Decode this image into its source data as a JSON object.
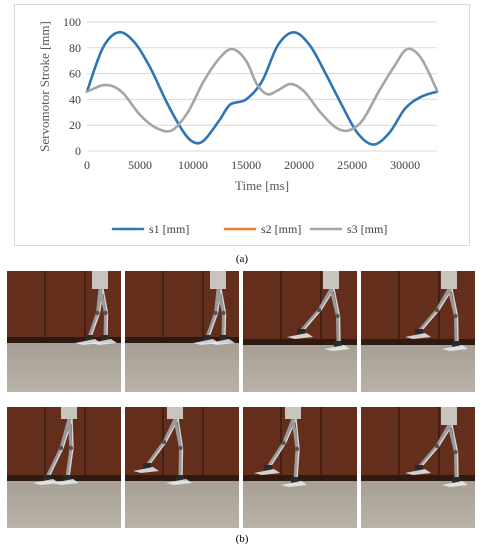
{
  "figure": {
    "caption_a": "(a)",
    "caption_b": "(b)"
  },
  "chart_data": {
    "type": "line",
    "xlabel": "Time [ms]",
    "ylabel": "Servomotor Stroke [mm]",
    "xlim": [
      0,
      33000
    ],
    "ylim": [
      0,
      100
    ],
    "x_ticks": [
      0,
      5000,
      10000,
      15000,
      20000,
      25000,
      30000
    ],
    "y_ticks": [
      0,
      20,
      40,
      60,
      80,
      100
    ],
    "x_tick_labels": [
      "0",
      "5000",
      "10000",
      "15000",
      "20000",
      "25000",
      "30000"
    ],
    "y_tick_labels": [
      "0",
      "20",
      "40",
      "60",
      "80",
      "100"
    ],
    "grid": "horizontal",
    "legend_position": "bottom",
    "series": [
      {
        "name": "s1 [mm]",
        "color": "#2e75b6",
        "points": [
          [
            0,
            46
          ],
          [
            1500,
            80
          ],
          [
            3000,
            92
          ],
          [
            4500,
            84
          ],
          [
            6000,
            64
          ],
          [
            7500,
            38
          ],
          [
            9000,
            16
          ],
          [
            10000,
            7
          ],
          [
            11000,
            8
          ],
          [
            12500,
            24
          ],
          [
            13500,
            36
          ],
          [
            15000,
            40
          ],
          [
            16500,
            54
          ],
          [
            18000,
            82
          ],
          [
            19500,
            92
          ],
          [
            21000,
            82
          ],
          [
            22500,
            60
          ],
          [
            24000,
            36
          ],
          [
            25500,
            14
          ],
          [
            27000,
            5
          ],
          [
            28500,
            14
          ],
          [
            30000,
            33
          ],
          [
            31500,
            42
          ],
          [
            33000,
            46
          ]
        ]
      },
      {
        "name": "s2 [mm]",
        "color": "#ed7d31",
        "points": []
      },
      {
        "name": "s3 [mm]",
        "color": "#a5a5a5",
        "points": [
          [
            0,
            46
          ],
          [
            1500,
            51
          ],
          [
            2500,
            50
          ],
          [
            3500,
            44
          ],
          [
            5000,
            28
          ],
          [
            6500,
            18
          ],
          [
            8000,
            16
          ],
          [
            9500,
            30
          ],
          [
            11000,
            54
          ],
          [
            12500,
            72
          ],
          [
            13700,
            79
          ],
          [
            15000,
            70
          ],
          [
            16000,
            52
          ],
          [
            17000,
            44
          ],
          [
            18000,
            47
          ],
          [
            19200,
            52
          ],
          [
            20500,
            46
          ],
          [
            22000,
            30
          ],
          [
            23500,
            18
          ],
          [
            24700,
            16
          ],
          [
            26000,
            24
          ],
          [
            27500,
            46
          ],
          [
            29000,
            66
          ],
          [
            30200,
            79
          ],
          [
            31500,
            72
          ],
          [
            33000,
            47
          ]
        ]
      }
    ]
  },
  "photos": {
    "row1": [
      {
        "pose": "stance-narrow"
      },
      {
        "pose": "stance-narrow"
      },
      {
        "pose": "step-cross"
      },
      {
        "pose": "step-cross"
      }
    ],
    "row2": [
      {
        "pose": "stance-wide"
      },
      {
        "pose": "step-forward"
      },
      {
        "pose": "step-wide"
      },
      {
        "pose": "step-cross"
      }
    ]
  }
}
